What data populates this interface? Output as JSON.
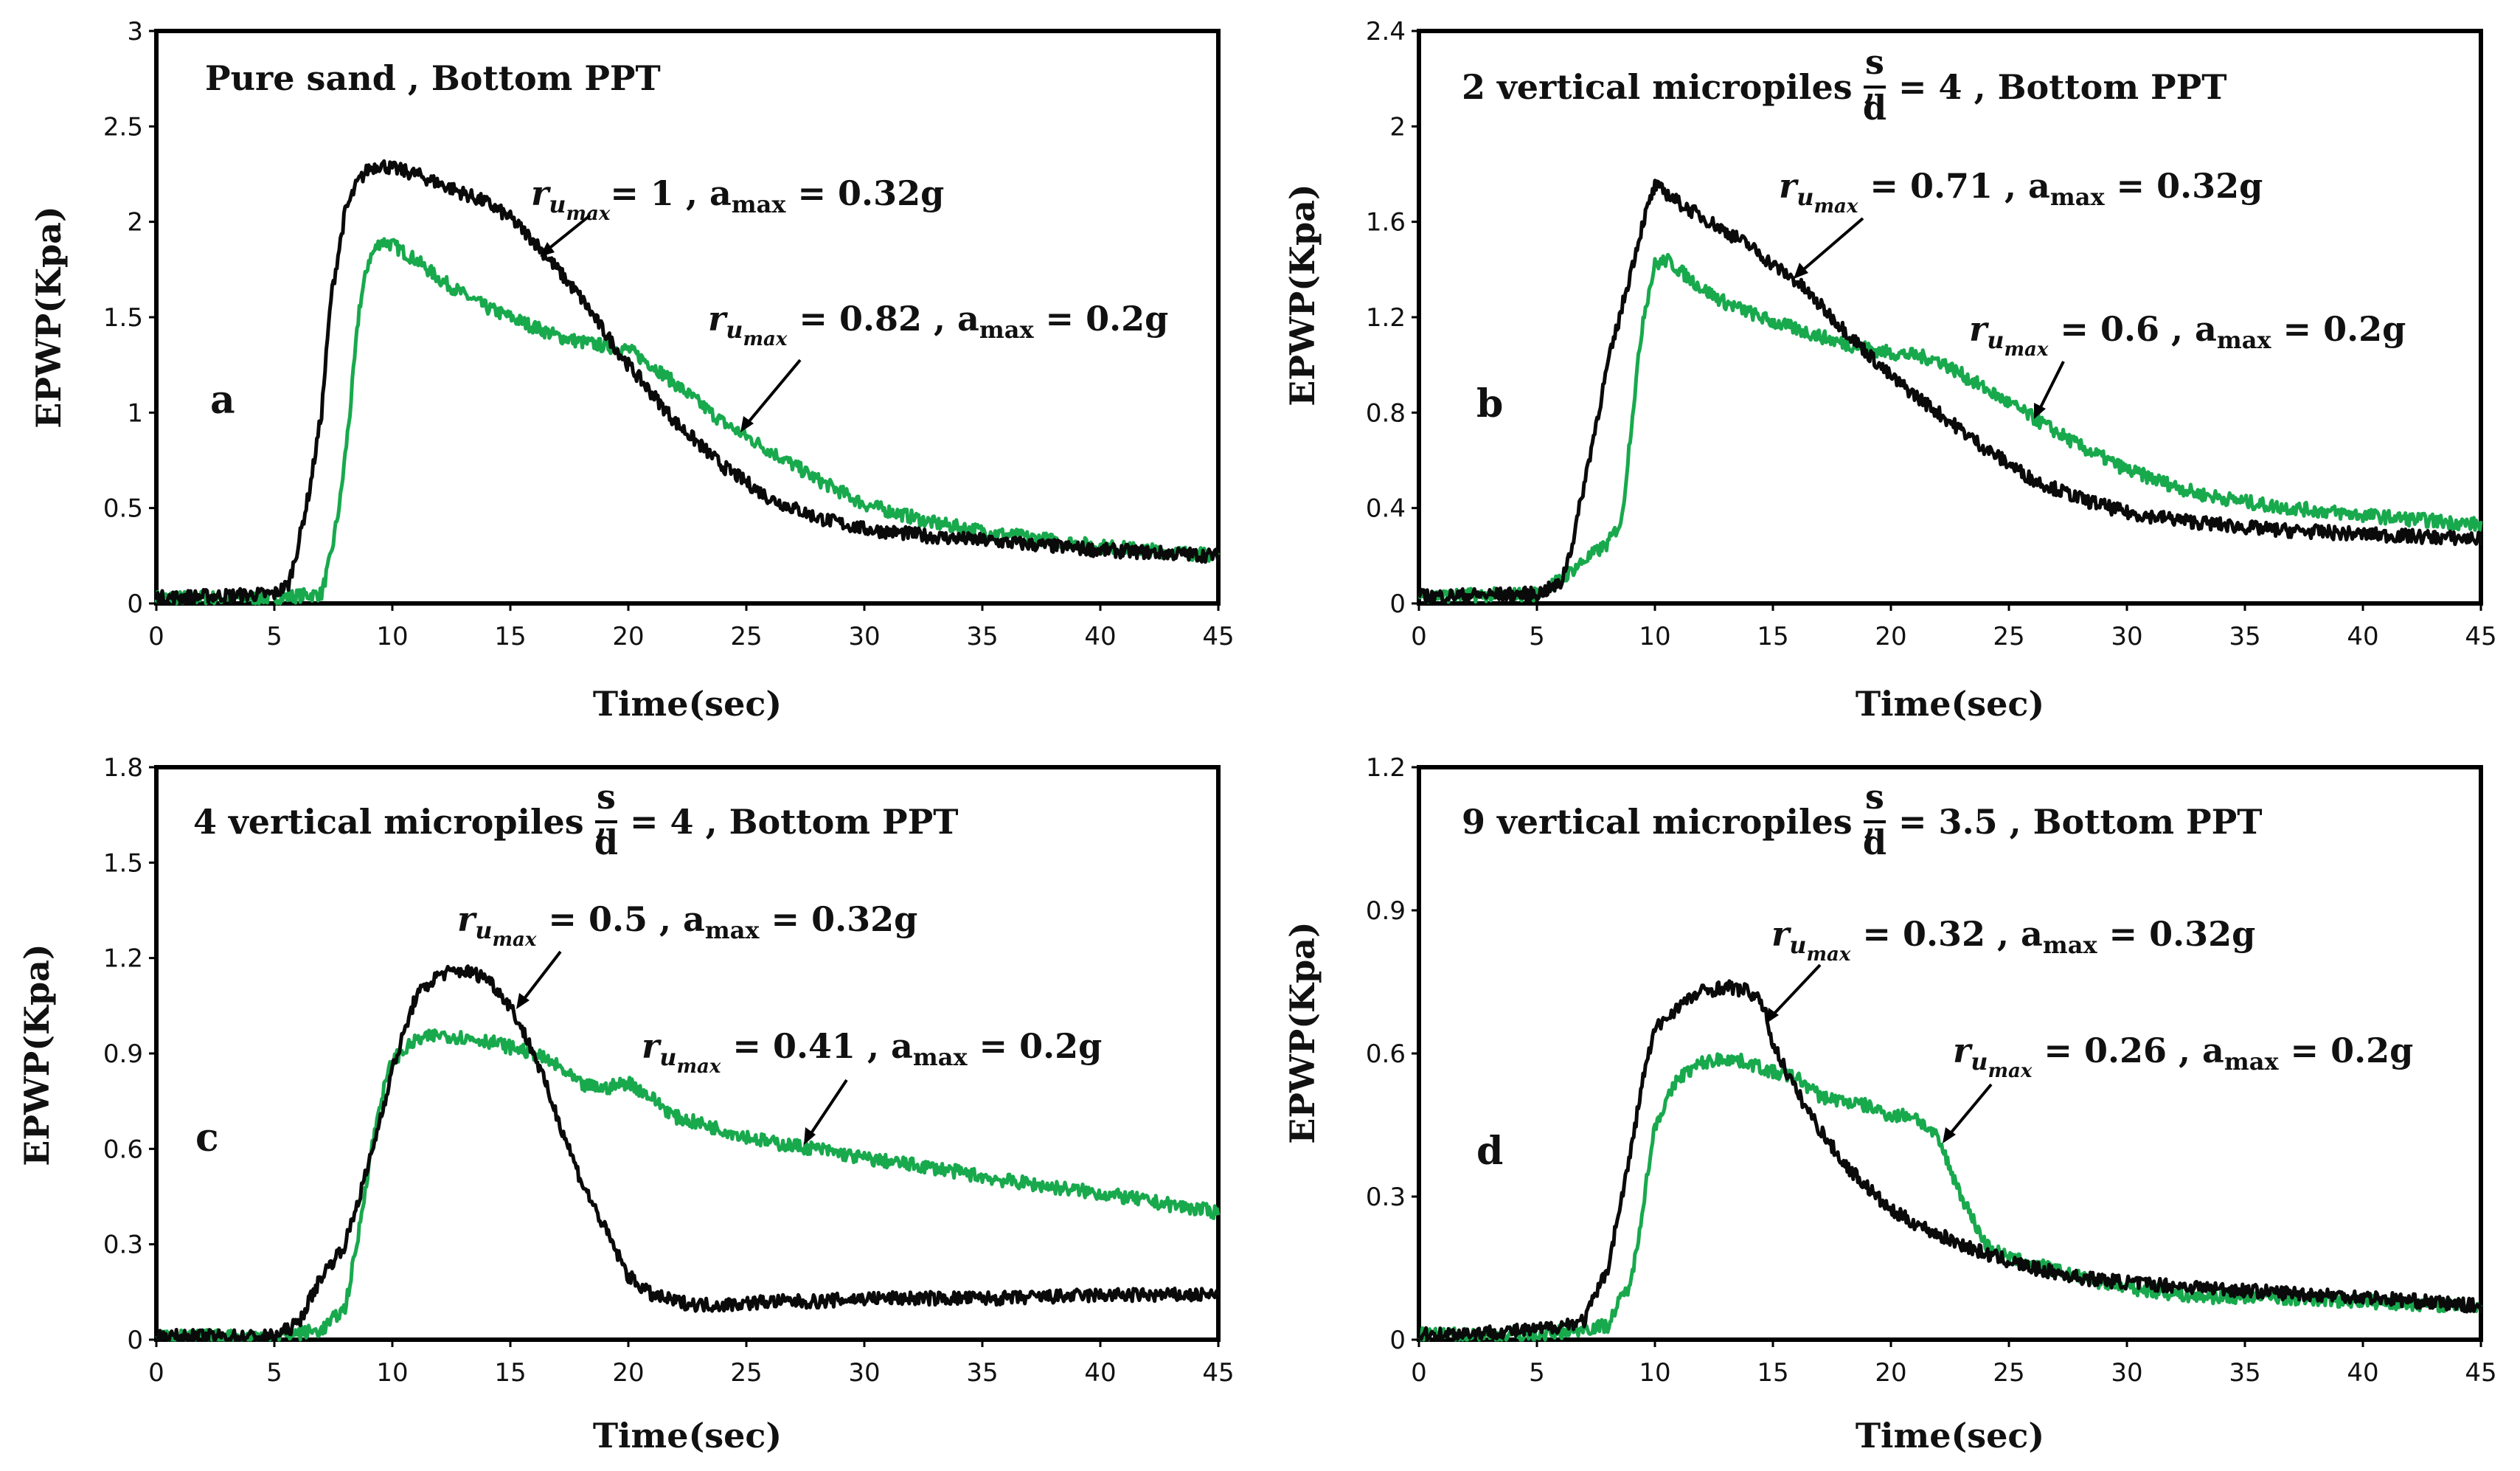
{
  "colors": {
    "black_series": "#0a0a0a",
    "green_series": "#18a94d",
    "frame": "#000000"
  },
  "chart_data": [
    {
      "type": "line",
      "panel": "a",
      "title": "Pure sand , Bottom PPT",
      "xlabel": "Time(sec)",
      "ylabel": "EPWP(Kpa)",
      "xlim": [
        0,
        45
      ],
      "ylim": [
        0,
        3
      ],
      "xticks": [
        "0",
        "5",
        "10",
        "15",
        "20",
        "25",
        "30",
        "35",
        "40",
        "45"
      ],
      "yticks": [
        "0",
        "0.5",
        "1",
        "1.5",
        "2",
        "2.5",
        "3"
      ],
      "series": [
        {
          "name": "a_max = 0.32g",
          "color": "black",
          "x": [
            0,
            5,
            5.6,
            6,
            6.5,
            7,
            7.4,
            8,
            8.5,
            9,
            9.5,
            10,
            11,
            12,
            13,
            14,
            15,
            16,
            17,
            18,
            19,
            20,
            22,
            24,
            26,
            28,
            30,
            33,
            36,
            40,
            45
          ],
          "y": [
            0.03,
            0.05,
            0.1,
            0.3,
            0.6,
            1.0,
            1.6,
            2.05,
            2.2,
            2.28,
            2.3,
            2.28,
            2.25,
            2.2,
            2.15,
            2.1,
            2.02,
            1.9,
            1.75,
            1.6,
            1.42,
            1.25,
            0.95,
            0.72,
            0.55,
            0.45,
            0.39,
            0.35,
            0.32,
            0.28,
            0.25
          ]
        },
        {
          "name": "a_max = 0.2g",
          "color": "green",
          "x": [
            0,
            5,
            7,
            7.4,
            7.8,
            8.2,
            8.6,
            9,
            9.5,
            10,
            11,
            12,
            13,
            14,
            15,
            16,
            17,
            18,
            19,
            20,
            21,
            22,
            24,
            26,
            28,
            30,
            33,
            36,
            40,
            45
          ],
          "y": [
            0.03,
            0.03,
            0.05,
            0.25,
            0.55,
            1.0,
            1.55,
            1.8,
            1.9,
            1.88,
            1.8,
            1.7,
            1.62,
            1.55,
            1.5,
            1.45,
            1.4,
            1.37,
            1.35,
            1.33,
            1.25,
            1.15,
            0.95,
            0.8,
            0.65,
            0.52,
            0.42,
            0.36,
            0.3,
            0.25
          ]
        }
      ],
      "annotations": [
        {
          "base": "r",
          "sub": "u",
          "subsub": "max",
          "rest": "= 1 , a",
          "rest_sub": "max",
          "tail": " = 0.32g"
        },
        {
          "base": "r",
          "sub": "u",
          "subsub": "max",
          "rest": " = 0.82 , a",
          "rest_sub": "max",
          "tail": " = 0.2g"
        }
      ],
      "letter": "a"
    },
    {
      "type": "line",
      "panel": "b",
      "title_prefix": "2 vertical micropiles ,",
      "title_frac_num": "s",
      "title_frac_den": "d",
      "title_suffix": "= 4 , Bottom PPT",
      "xlabel": "Time(sec)",
      "ylabel": "EPWP(Kpa)",
      "xlim": [
        0,
        45
      ],
      "ylim": [
        0,
        2.4
      ],
      "xticks": [
        "0",
        "5",
        "10",
        "15",
        "20",
        "25",
        "30",
        "35",
        "40",
        "45"
      ],
      "yticks": [
        "0",
        "0.4",
        "0.8",
        "1.2",
        "1.6",
        "2",
        "2.4"
      ],
      "series": [
        {
          "name": "a_max = 0.32g",
          "color": "black",
          "x": [
            0,
            5,
            6,
            6.5,
            7,
            7.5,
            8,
            8.5,
            9,
            9.5,
            10,
            10.5,
            11,
            12,
            13,
            14,
            15,
            16,
            17,
            18,
            19,
            20,
            22,
            24,
            26,
            28,
            30,
            33,
            36,
            40,
            45
          ],
          "y": [
            0.03,
            0.04,
            0.08,
            0.25,
            0.5,
            0.75,
            1.0,
            1.2,
            1.4,
            1.6,
            1.75,
            1.72,
            1.68,
            1.62,
            1.56,
            1.5,
            1.42,
            1.35,
            1.25,
            1.15,
            1.05,
            0.95,
            0.8,
            0.65,
            0.52,
            0.44,
            0.38,
            0.34,
            0.31,
            0.29,
            0.27
          ]
        },
        {
          "name": "a_max = 0.2g",
          "color": "green",
          "x": [
            0,
            5,
            6,
            7,
            8,
            8.6,
            9,
            9.5,
            10,
            10.5,
            11,
            12,
            13,
            14,
            15,
            16,
            17,
            18,
            19,
            20,
            21,
            22,
            23,
            24,
            26,
            28,
            30,
            33,
            36,
            40,
            45
          ],
          "y": [
            0.03,
            0.04,
            0.1,
            0.18,
            0.25,
            0.35,
            0.75,
            1.2,
            1.42,
            1.44,
            1.4,
            1.32,
            1.26,
            1.22,
            1.18,
            1.15,
            1.12,
            1.09,
            1.07,
            1.05,
            1.04,
            1.02,
            0.96,
            0.9,
            0.78,
            0.66,
            0.56,
            0.46,
            0.41,
            0.37,
            0.33
          ]
        }
      ],
      "annotations": [
        {
          "base": "r",
          "sub": "u",
          "subsub": "max",
          "rest": " = 0.71 , a",
          "rest_sub": "max",
          "tail": " = 0.32g"
        },
        {
          "base": "r",
          "sub": "u",
          "subsub": "max",
          "rest": " = 0.6 , a",
          "rest_sub": "max",
          "tail": " = 0.2g"
        }
      ],
      "letter": "b"
    },
    {
      "type": "line",
      "panel": "c",
      "title_prefix": "4 vertical micropiles ,",
      "title_frac_num": "s",
      "title_frac_den": "d",
      "title_suffix": "= 4 , Bottom PPT",
      "xlabel": "Time(sec)",
      "ylabel": "EPWP(Kpa)",
      "xlim": [
        0,
        45
      ],
      "ylim": [
        0,
        1.8
      ],
      "xticks": [
        "0",
        "5",
        "10",
        "15",
        "20",
        "25",
        "30",
        "35",
        "40",
        "45"
      ],
      "yticks": [
        "0",
        "0.3",
        "0.6",
        "0.9",
        "1.2",
        "1.5",
        "1.8"
      ],
      "series": [
        {
          "name": "a_max = 0.32g",
          "color": "black",
          "x": [
            0,
            5,
            6,
            7,
            8,
            9,
            10,
            11,
            12,
            13,
            14,
            15,
            16,
            17,
            18,
            19,
            20,
            21,
            22,
            23,
            24,
            26,
            28,
            30,
            33,
            36,
            40,
            45
          ],
          "y": [
            0.01,
            0.01,
            0.05,
            0.2,
            0.3,
            0.55,
            0.85,
            1.08,
            1.15,
            1.16,
            1.14,
            1.05,
            0.9,
            0.7,
            0.5,
            0.35,
            0.2,
            0.14,
            0.12,
            0.11,
            0.11,
            0.12,
            0.12,
            0.13,
            0.13,
            0.13,
            0.14,
            0.14
          ]
        },
        {
          "name": "a_max = 0.2g",
          "color": "green",
          "x": [
            0,
            5,
            7,
            8,
            8.5,
            9,
            9.5,
            10,
            11,
            12,
            13,
            14,
            15,
            16,
            17,
            18,
            19,
            20,
            21,
            22,
            24,
            26,
            28,
            30,
            33,
            36,
            40,
            45
          ],
          "y": [
            0.01,
            0.01,
            0.03,
            0.1,
            0.3,
            0.55,
            0.75,
            0.88,
            0.94,
            0.96,
            0.95,
            0.94,
            0.92,
            0.9,
            0.86,
            0.8,
            0.79,
            0.81,
            0.76,
            0.7,
            0.66,
            0.62,
            0.6,
            0.57,
            0.54,
            0.5,
            0.46,
            0.4
          ]
        }
      ],
      "annotations": [
        {
          "base": "r",
          "sub": "u",
          "subsub": "max",
          "rest": " = 0.5 , a",
          "rest_sub": "max",
          "tail": " = 0.32g"
        },
        {
          "base": "r",
          "sub": "u",
          "subsub": "max",
          "rest": " = 0.41 , a",
          "rest_sub": "max",
          "tail": " = 0.2g"
        }
      ],
      "letter": "c"
    },
    {
      "type": "line",
      "panel": "d",
      "title_prefix": "9 vertical micropiles ,",
      "title_frac_num": "s",
      "title_frac_den": "d",
      "title_suffix": "= 3.5 , Bottom PPT",
      "xlabel": "Time(sec)",
      "ylabel": "EPWP(Kpa)",
      "xlim": [
        0,
        45
      ],
      "ylim": [
        0,
        1.2
      ],
      "xticks": [
        "0",
        "5",
        "10",
        "15",
        "20",
        "25",
        "30",
        "35",
        "40",
        "45"
      ],
      "yticks": [
        "0",
        "0.3",
        "0.6",
        "0.9",
        "1.2"
      ],
      "series": [
        {
          "name": "a_max = 0.32g",
          "color": "black",
          "x": [
            0,
            5,
            7,
            8,
            9,
            9.5,
            10,
            11,
            12,
            13,
            14,
            14.6,
            15,
            16,
            17,
            18,
            19,
            20,
            22,
            24,
            26,
            28,
            30,
            33,
            36,
            40,
            45
          ],
          "y": [
            0.01,
            0.02,
            0.04,
            0.15,
            0.4,
            0.55,
            0.65,
            0.7,
            0.73,
            0.74,
            0.73,
            0.7,
            0.62,
            0.52,
            0.44,
            0.37,
            0.32,
            0.27,
            0.22,
            0.18,
            0.15,
            0.13,
            0.12,
            0.11,
            0.1,
            0.09,
            0.07
          ]
        },
        {
          "name": "a_max = 0.2g",
          "color": "green",
          "x": [
            0,
            5,
            8,
            8.5,
            9,
            10,
            11,
            12,
            13,
            14,
            15,
            16,
            17,
            18,
            19,
            20,
            21,
            22,
            23,
            24,
            25,
            26,
            28,
            30,
            33,
            36,
            40,
            45
          ],
          "y": [
            0.01,
            0.01,
            0.03,
            0.08,
            0.12,
            0.45,
            0.55,
            0.58,
            0.59,
            0.58,
            0.56,
            0.55,
            0.51,
            0.5,
            0.49,
            0.47,
            0.47,
            0.42,
            0.3,
            0.2,
            0.17,
            0.16,
            0.13,
            0.11,
            0.09,
            0.09,
            0.08,
            0.07
          ]
        }
      ],
      "annotations": [
        {
          "base": "r",
          "sub": "u",
          "subsub": "max",
          "rest": " = 0.32 , a",
          "rest_sub": "max",
          "tail": " = 0.32g"
        },
        {
          "base": "r",
          "sub": "u",
          "subsub": "max",
          "rest": " = 0.26 , a",
          "rest_sub": "max",
          "tail": " = 0.2g"
        }
      ],
      "letter": "d"
    }
  ]
}
